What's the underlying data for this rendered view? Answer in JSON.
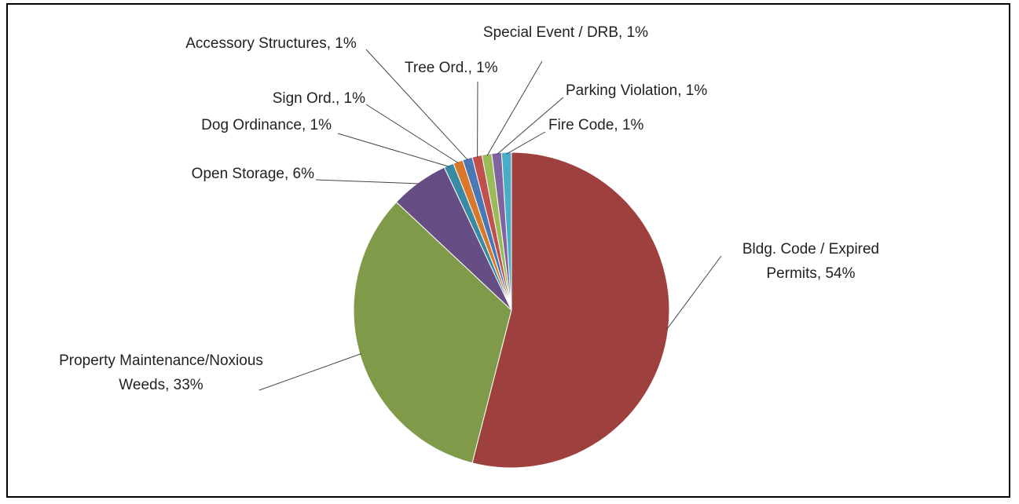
{
  "chart_data": {
    "type": "pie",
    "categories": [
      "Bldg. Code / Expired Permits, 54%",
      "Property Maintenance/Noxious Weeds, 33%",
      "Open Storage, 6%",
      "Dog Ordinance, 1%",
      "Sign Ord., 1%",
      "Accessory Structures, 1%",
      "Tree Ord., 1%",
      "Special Event / DRB, 1%",
      "Parking Violation, 1%",
      "Fire Code, 1%"
    ],
    "values": [
      54,
      33,
      6,
      1,
      1,
      1,
      1,
      1,
      1,
      1
    ],
    "colors": [
      "#9e413e",
      "#7f9a48",
      "#664e85",
      "#3a8aa4",
      "#d9782b",
      "#4a78b5",
      "#c0504d",
      "#9bbb59",
      "#8064a2",
      "#4bacc6"
    ]
  }
}
